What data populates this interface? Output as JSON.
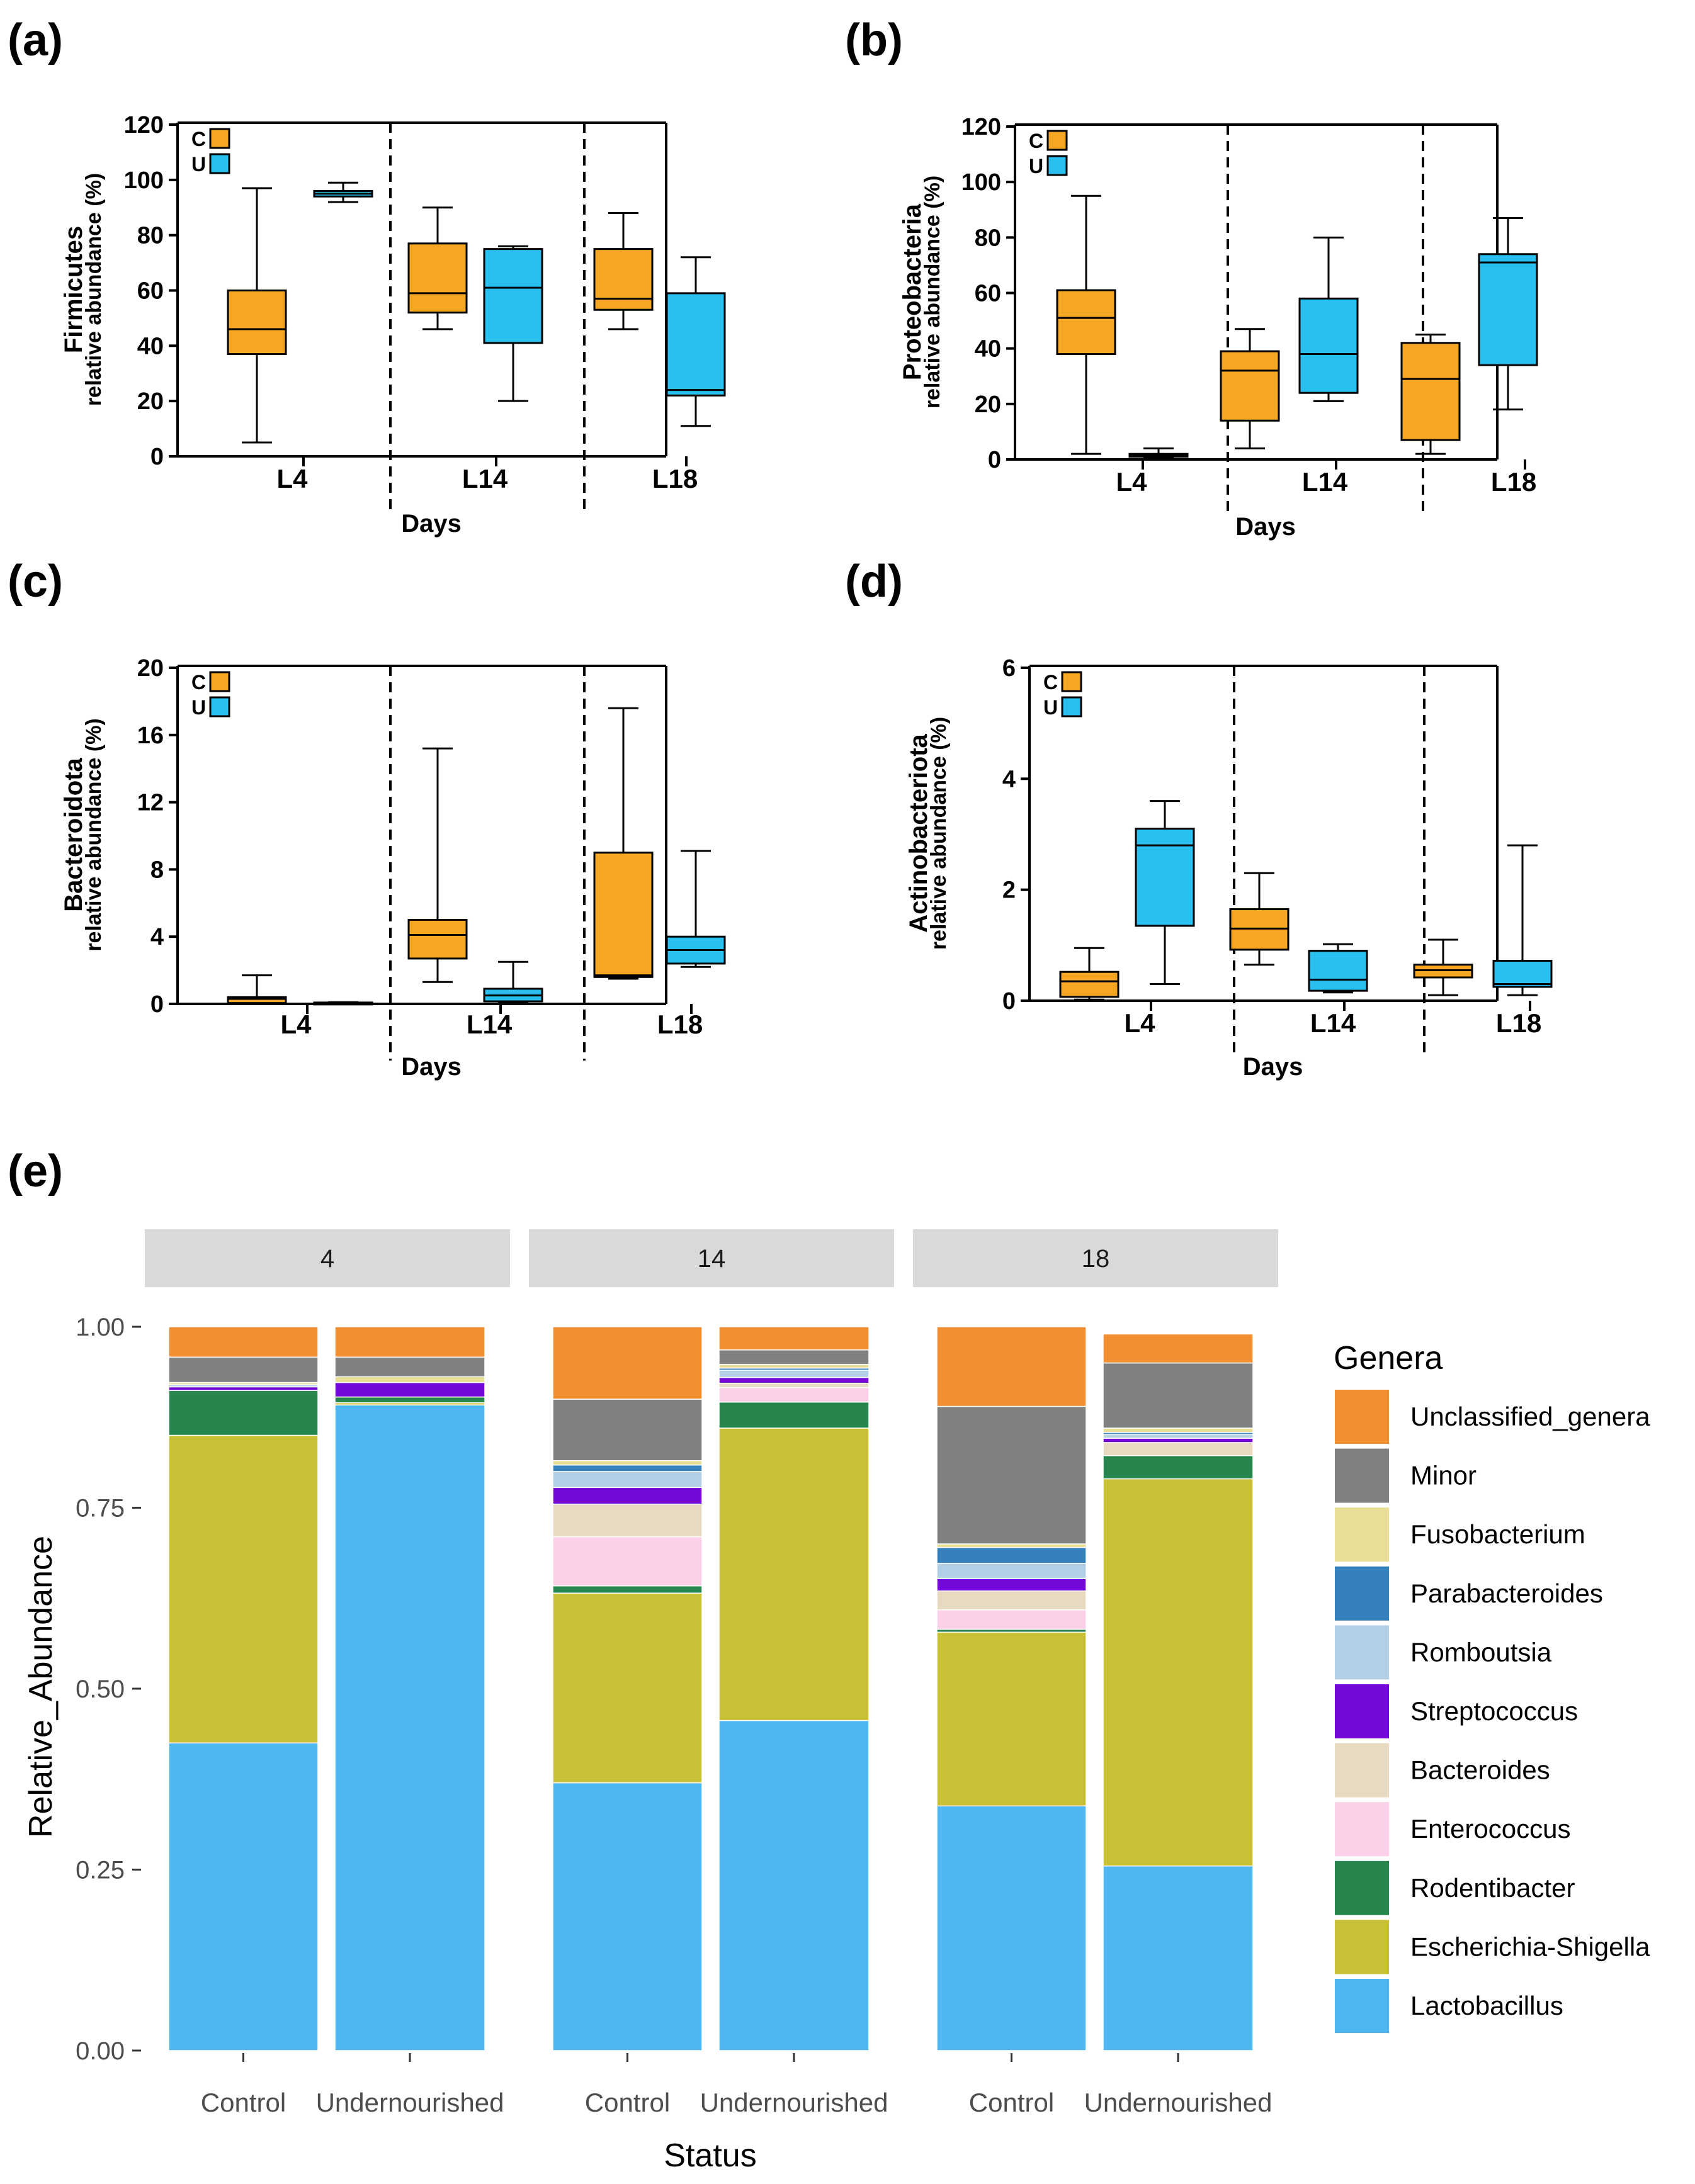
{
  "colors": {
    "control": "#f5a623",
    "undernourished": "#29c0ef",
    "strip": "#d9d9d9"
  },
  "chart_data": [
    {
      "panel": "(a)",
      "type": "box",
      "ylabel_line1": "Firmicutes",
      "ylabel_line2": "relative abundance (%)",
      "xlabel": "Days",
      "ylim": [
        0,
        120
      ],
      "yticks": [
        0,
        20,
        40,
        60,
        80,
        100,
        120
      ],
      "categories": [
        "L4",
        "L14",
        "L18"
      ],
      "legend": [
        "C",
        "U"
      ],
      "boxes": [
        {
          "group": "L4",
          "series": "C",
          "min": 5,
          "q1": 37,
          "median": 46,
          "q3": 60,
          "max": 97
        },
        {
          "group": "L4",
          "series": "U",
          "min": 92,
          "q1": 94,
          "median": 95,
          "q3": 96,
          "max": 99
        },
        {
          "group": "L14",
          "series": "C",
          "min": 46,
          "q1": 52,
          "median": 59,
          "q3": 77,
          "max": 90
        },
        {
          "group": "L14",
          "series": "U",
          "min": 20,
          "q1": 41,
          "median": 61,
          "q3": 75,
          "max": 76
        },
        {
          "group": "L18",
          "series": "C",
          "min": 46,
          "q1": 53,
          "median": 57,
          "q3": 75,
          "max": 88
        },
        {
          "group": "L18",
          "series": "U",
          "min": 11,
          "q1": 22,
          "median": 24,
          "q3": 59,
          "max": 72
        }
      ]
    },
    {
      "panel": "(b)",
      "type": "box",
      "ylabel_line1": "Proteobacteria",
      "ylabel_line2": "relative abundance (%)",
      "xlabel": "Days",
      "ylim": [
        0,
        120
      ],
      "yticks": [
        0,
        20,
        40,
        60,
        80,
        100,
        120
      ],
      "categories": [
        "L4",
        "L14",
        "L18"
      ],
      "legend": [
        "C",
        "U"
      ],
      "boxes": [
        {
          "group": "L4",
          "series": "C",
          "min": 2,
          "q1": 38,
          "median": 51,
          "q3": 61,
          "max": 95
        },
        {
          "group": "L4",
          "series": "U",
          "min": 0.5,
          "q1": 1,
          "median": 1.5,
          "q3": 2,
          "max": 4
        },
        {
          "group": "L14",
          "series": "C",
          "min": 4,
          "q1": 14,
          "median": 32,
          "q3": 39,
          "max": 47
        },
        {
          "group": "L14",
          "series": "U",
          "min": 21,
          "q1": 24,
          "median": 38,
          "q3": 58,
          "max": 80
        },
        {
          "group": "L18",
          "series": "C",
          "min": 2,
          "q1": 7,
          "median": 29,
          "q3": 42,
          "max": 45
        },
        {
          "group": "L18",
          "series": "U",
          "min": 18,
          "q1": 34,
          "median": 71,
          "q3": 74,
          "max": 87
        }
      ]
    },
    {
      "panel": "(c)",
      "type": "box",
      "ylabel_line1": "Bacteroidota",
      "ylabel_line2": "relative abundance (%)",
      "xlabel": "Days",
      "ylim": [
        0,
        20
      ],
      "yticks": [
        0,
        4,
        8,
        12,
        16,
        20
      ],
      "categories": [
        "L4",
        "L14",
        "L18"
      ],
      "legend": [
        "C",
        "U"
      ],
      "boxes": [
        {
          "group": "L4",
          "series": "C",
          "min": 0,
          "q1": 0.05,
          "median": 0.3,
          "q3": 0.4,
          "max": 1.7
        },
        {
          "group": "L4",
          "series": "U",
          "min": 0,
          "q1": 0.02,
          "median": 0.05,
          "q3": 0.08,
          "max": 0.1
        },
        {
          "group": "L14",
          "series": "C",
          "min": 1.3,
          "q1": 2.7,
          "median": 4.1,
          "q3": 5.0,
          "max": 15.2
        },
        {
          "group": "L14",
          "series": "U",
          "min": 0.1,
          "q1": 0.15,
          "median": 0.5,
          "q3": 0.9,
          "max": 2.5
        },
        {
          "group": "L18",
          "series": "C",
          "min": 1.5,
          "q1": 1.6,
          "median": 1.7,
          "q3": 9.0,
          "max": 17.6
        },
        {
          "group": "L18",
          "series": "U",
          "min": 2.2,
          "q1": 2.4,
          "median": 3.2,
          "q3": 4.0,
          "max": 9.1
        }
      ]
    },
    {
      "panel": "(d)",
      "type": "box",
      "ylabel_line1": "Actinobacteriota",
      "ylabel_line2": "relative abundance (%)",
      "xlabel": "Days",
      "ylim": [
        0,
        6
      ],
      "yticks": [
        0,
        2,
        4,
        6
      ],
      "categories": [
        "L4",
        "L14",
        "L18"
      ],
      "legend": [
        "C",
        "U"
      ],
      "boxes": [
        {
          "group": "L4",
          "series": "C",
          "min": 0.02,
          "q1": 0.07,
          "median": 0.35,
          "q3": 0.52,
          "max": 0.95
        },
        {
          "group": "L4",
          "series": "U",
          "min": 0.3,
          "q1": 1.35,
          "median": 2.8,
          "q3": 3.1,
          "max": 3.6
        },
        {
          "group": "L14",
          "series": "C",
          "min": 0.65,
          "q1": 0.92,
          "median": 1.3,
          "q3": 1.65,
          "max": 2.3
        },
        {
          "group": "L14",
          "series": "U",
          "min": 0.15,
          "q1": 0.18,
          "median": 0.38,
          "q3": 0.9,
          "max": 1.02
        },
        {
          "group": "L18",
          "series": "C",
          "min": 0.1,
          "q1": 0.42,
          "median": 0.55,
          "q3": 0.65,
          "max": 1.1
        },
        {
          "group": "L18",
          "series": "U",
          "min": 0.1,
          "q1": 0.25,
          "median": 0.3,
          "q3": 0.72,
          "max": 2.8
        }
      ]
    },
    {
      "panel": "(e)",
      "type": "stacked_bar",
      "ylabel": "Relative_Abundance",
      "xlabel": "Status",
      "ylim": [
        0,
        1
      ],
      "yticks": [
        "0.00",
        "0.25",
        "0.50",
        "0.75",
        "1.00"
      ],
      "facets": [
        "4",
        "14",
        "18"
      ],
      "categories": [
        "Control",
        "Undernourished"
      ],
      "legend_title": "Genera",
      "legend_order": [
        "Unclassified_genera",
        "Minor",
        "Fusobacterium",
        "Parabacteroides",
        "Romboutsia",
        "Streptococcus",
        "Bacteroides",
        "Enterococcus",
        "Rodentibacter",
        "Escherichia-Shigella",
        "Lactobacillus"
      ],
      "genus_colors": {
        "Lactobacillus": "#4fb7f0",
        "Escherichia-Shigella": "#c8c135",
        "Rodentibacter": "#27864e",
        "Enterococcus": "#fdd0ea",
        "Bacteroides": "#e8dac0",
        "Streptococcus": "#7408d6",
        "Romboutsia": "#b3cfe6",
        "Parabacteroides": "#3481bc",
        "Fusobacterium": "#e8de96",
        "Minor": "#808080",
        "Unclassified_genera": "#f28e30"
      },
      "stack_order": [
        "Lactobacillus",
        "Escherichia-Shigella",
        "Rodentibacter",
        "Enterococcus",
        "Bacteroides",
        "Streptococcus",
        "Romboutsia",
        "Parabacteroides",
        "Fusobacterium",
        "Minor",
        "Unclassified_genera"
      ],
      "bars": [
        {
          "facet": "4",
          "status": "Control",
          "values": {
            "Lactobacillus": 0.425,
            "Escherichia-Shigella": 0.425,
            "Rodentibacter": 0.062,
            "Enterococcus": 0.0,
            "Bacteroides": 0.0,
            "Streptococcus": 0.005,
            "Romboutsia": 0.003,
            "Parabacteroides": 0.0,
            "Fusobacterium": 0.003,
            "Minor": 0.035,
            "Unclassified_genera": 0.042
          }
        },
        {
          "facet": "4",
          "status": "Undernourished",
          "values": {
            "Lactobacillus": 0.892,
            "Escherichia-Shigella": 0.003,
            "Rodentibacter": 0.008,
            "Enterococcus": 0.0,
            "Bacteroides": 0.0,
            "Streptococcus": 0.02,
            "Romboutsia": 0.0,
            "Parabacteroides": 0.0,
            "Fusobacterium": 0.008,
            "Minor": 0.027,
            "Unclassified_genera": 0.042
          }
        },
        {
          "facet": "14",
          "status": "Control",
          "values": {
            "Lactobacillus": 0.37,
            "Escherichia-Shigella": 0.262,
            "Rodentibacter": 0.01,
            "Enterococcus": 0.068,
            "Bacteroides": 0.045,
            "Streptococcus": 0.023,
            "Romboutsia": 0.022,
            "Parabacteroides": 0.009,
            "Fusobacterium": 0.006,
            "Minor": 0.085,
            "Unclassified_genera": 0.1
          }
        },
        {
          "facet": "14",
          "status": "Undernourished",
          "values": {
            "Lactobacillus": 0.456,
            "Escherichia-Shigella": 0.404,
            "Rodentibacter": 0.036,
            "Enterococcus": 0.02,
            "Bacteroides": 0.006,
            "Streptococcus": 0.008,
            "Romboutsia": 0.01,
            "Parabacteroides": 0.003,
            "Fusobacterium": 0.005,
            "Minor": 0.02,
            "Unclassified_genera": 0.032
          }
        },
        {
          "facet": "18",
          "status": "Control",
          "values": {
            "Lactobacillus": 0.338,
            "Escherichia-Shigella": 0.24,
            "Rodentibacter": 0.004,
            "Enterococcus": 0.027,
            "Bacteroides": 0.026,
            "Streptococcus": 0.017,
            "Romboutsia": 0.021,
            "Parabacteroides": 0.022,
            "Fusobacterium": 0.005,
            "Minor": 0.19,
            "Unclassified_genera": 0.11
          }
        },
        {
          "facet": "18",
          "status": "Undernourished",
          "values": {
            "Lactobacillus": 0.255,
            "Escherichia-Shigella": 0.535,
            "Rodentibacter": 0.032,
            "Enterococcus": 0.0,
            "Bacteroides": 0.018,
            "Streptococcus": 0.006,
            "Romboutsia": 0.005,
            "Parabacteroides": 0.003,
            "Fusobacterium": 0.006,
            "Minor": 0.09,
            "Unclassified_genera": 0.04
          }
        }
      ]
    }
  ]
}
